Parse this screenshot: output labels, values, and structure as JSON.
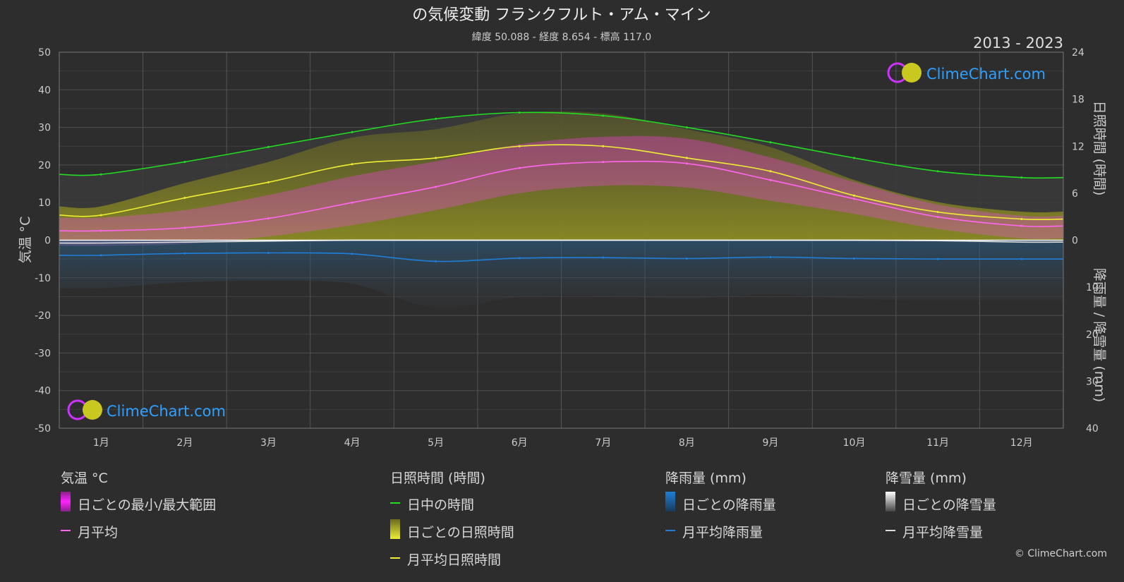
{
  "chart_data": {
    "type": "area",
    "title": "の気候変動 フランクフルト・アム・マイン",
    "subtitle": "緯度 50.088 - 経度 8.654 - 標高 117.0",
    "period": "2013 - 2023",
    "categories": [
      "1月",
      "2月",
      "3月",
      "4月",
      "5月",
      "6月",
      "7月",
      "8月",
      "9月",
      "10月",
      "11月",
      "12月"
    ],
    "y_left": {
      "label": "気温 °C",
      "range": [
        -50,
        50
      ],
      "ticks": [
        50,
        40,
        30,
        20,
        10,
        0,
        -10,
        -20,
        -30,
        -40,
        -50
      ]
    },
    "y_right_top": {
      "label": "日照時間 (時間)",
      "range": [
        0,
        24
      ],
      "ticks": [
        24,
        18,
        12,
        6,
        0
      ]
    },
    "y_right_bottom": {
      "label": "降雨量 / 降雪量 (mm)",
      "range": [
        0,
        40
      ],
      "ticks": [
        10,
        20,
        30,
        40
      ]
    },
    "series": [
      {
        "name": "日中の時間",
        "unit": "hours",
        "values": [
          8.4,
          10.0,
          11.9,
          13.8,
          15.5,
          16.3,
          15.9,
          14.4,
          12.5,
          10.5,
          8.8,
          8.0
        ]
      },
      {
        "name": "月平均日照時間",
        "unit": "hours",
        "values": [
          3.2,
          5.4,
          7.4,
          9.7,
          10.5,
          12.0,
          12.0,
          10.5,
          8.8,
          5.7,
          3.6,
          2.7
        ]
      },
      {
        "name": "月平均",
        "unit": "°C",
        "values": [
          2.5,
          3.3,
          5.8,
          10.0,
          14.2,
          19.2,
          20.8,
          20.4,
          16.0,
          11.0,
          6.2,
          3.8
        ]
      },
      {
        "name": "日ごとの最小/最大範囲",
        "unit": "°C",
        "min": [
          -1.5,
          -1.0,
          1.0,
          4.0,
          8.0,
          12.5,
          14.5,
          14.0,
          10.5,
          7.0,
          3.0,
          0.5
        ],
        "max": [
          6.0,
          8.0,
          12.0,
          17.0,
          21.0,
          25.5,
          27.5,
          27.0,
          22.0,
          15.5,
          9.5,
          6.5
        ]
      },
      {
        "name": "月平均降雨量",
        "unit": "mm",
        "values": [
          3.2,
          2.8,
          2.7,
          2.9,
          4.5,
          3.8,
          3.7,
          3.9,
          3.6,
          3.9,
          4.0,
          4.0
        ]
      },
      {
        "name": "月平均降雪量",
        "unit": "mm",
        "values": [
          0.6,
          0.4,
          0.2,
          0.0,
          0.0,
          0.0,
          0.0,
          0.0,
          0.0,
          0.0,
          0.1,
          0.4
        ]
      }
    ],
    "grid": true,
    "legend_position": "bottom"
  },
  "brand": {
    "logo_text": "ClimeChart.com",
    "copyright": "© ClimeChart.com"
  },
  "legend": {
    "temperature": {
      "head": "気温 °C",
      "range": "日ごとの最小/最大範囲",
      "mean": "月平均"
    },
    "sunshine": {
      "head": "日照時間 (時間)",
      "daylight": "日中の時間",
      "daily": "日ごとの日照時間",
      "mean": "月平均日照時間"
    },
    "rain": {
      "head": "降雨量 (mm)",
      "daily": "日ごとの降雨量",
      "mean": "月平均降雨量"
    },
    "snow": {
      "head": "降雪量 (mm)",
      "daily": "日ごとの降雪量",
      "mean": "月平均降雪量"
    }
  },
  "colors": {
    "background": "#2d2d2d",
    "grid": "#555555",
    "daylight": "#22dd22",
    "sunshine": "#eeee33",
    "temp_mean": "#ff66ee",
    "temp_range": "#e040c0",
    "rain": "#1f7fd8",
    "snow": "#cccccc",
    "brand": "#2ea0ff"
  }
}
